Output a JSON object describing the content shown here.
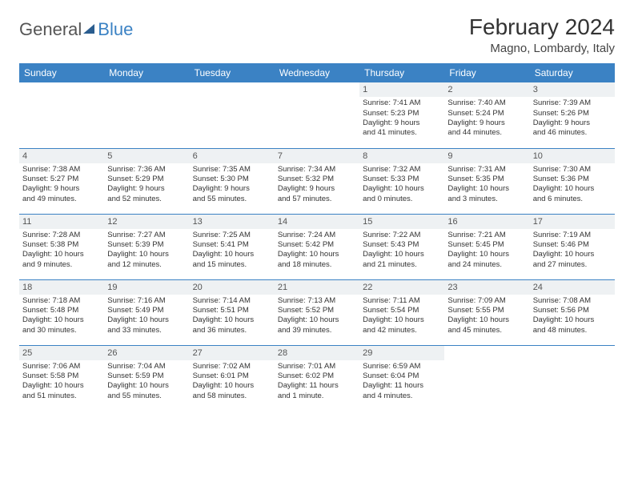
{
  "brand": {
    "name_part1": "General",
    "name_part2": "Blue"
  },
  "title": "February 2024",
  "location": "Magno, Lombardy, Italy",
  "colors": {
    "header_bg": "#3b82c4",
    "header_text": "#ffffff",
    "daynum_bg": "#eef1f3",
    "row_border": "#3b82c4",
    "body_text": "#333333"
  },
  "typography": {
    "title_fontsize": 28,
    "location_fontsize": 15,
    "dayheader_fontsize": 12,
    "cell_fontsize": 9.5
  },
  "day_headers": [
    "Sunday",
    "Monday",
    "Tuesday",
    "Wednesday",
    "Thursday",
    "Friday",
    "Saturday"
  ],
  "weeks": [
    [
      {
        "n": "",
        "sr": "",
        "ss": "",
        "d1": "",
        "d2": ""
      },
      {
        "n": "",
        "sr": "",
        "ss": "",
        "d1": "",
        "d2": ""
      },
      {
        "n": "",
        "sr": "",
        "ss": "",
        "d1": "",
        "d2": ""
      },
      {
        "n": "",
        "sr": "",
        "ss": "",
        "d1": "",
        "d2": ""
      },
      {
        "n": "1",
        "sr": "Sunrise: 7:41 AM",
        "ss": "Sunset: 5:23 PM",
        "d1": "Daylight: 9 hours",
        "d2": "and 41 minutes."
      },
      {
        "n": "2",
        "sr": "Sunrise: 7:40 AM",
        "ss": "Sunset: 5:24 PM",
        "d1": "Daylight: 9 hours",
        "d2": "and 44 minutes."
      },
      {
        "n": "3",
        "sr": "Sunrise: 7:39 AM",
        "ss": "Sunset: 5:26 PM",
        "d1": "Daylight: 9 hours",
        "d2": "and 46 minutes."
      }
    ],
    [
      {
        "n": "4",
        "sr": "Sunrise: 7:38 AM",
        "ss": "Sunset: 5:27 PM",
        "d1": "Daylight: 9 hours",
        "d2": "and 49 minutes."
      },
      {
        "n": "5",
        "sr": "Sunrise: 7:36 AM",
        "ss": "Sunset: 5:29 PM",
        "d1": "Daylight: 9 hours",
        "d2": "and 52 minutes."
      },
      {
        "n": "6",
        "sr": "Sunrise: 7:35 AM",
        "ss": "Sunset: 5:30 PM",
        "d1": "Daylight: 9 hours",
        "d2": "and 55 minutes."
      },
      {
        "n": "7",
        "sr": "Sunrise: 7:34 AM",
        "ss": "Sunset: 5:32 PM",
        "d1": "Daylight: 9 hours",
        "d2": "and 57 minutes."
      },
      {
        "n": "8",
        "sr": "Sunrise: 7:32 AM",
        "ss": "Sunset: 5:33 PM",
        "d1": "Daylight: 10 hours",
        "d2": "and 0 minutes."
      },
      {
        "n": "9",
        "sr": "Sunrise: 7:31 AM",
        "ss": "Sunset: 5:35 PM",
        "d1": "Daylight: 10 hours",
        "d2": "and 3 minutes."
      },
      {
        "n": "10",
        "sr": "Sunrise: 7:30 AM",
        "ss": "Sunset: 5:36 PM",
        "d1": "Daylight: 10 hours",
        "d2": "and 6 minutes."
      }
    ],
    [
      {
        "n": "11",
        "sr": "Sunrise: 7:28 AM",
        "ss": "Sunset: 5:38 PM",
        "d1": "Daylight: 10 hours",
        "d2": "and 9 minutes."
      },
      {
        "n": "12",
        "sr": "Sunrise: 7:27 AM",
        "ss": "Sunset: 5:39 PM",
        "d1": "Daylight: 10 hours",
        "d2": "and 12 minutes."
      },
      {
        "n": "13",
        "sr": "Sunrise: 7:25 AM",
        "ss": "Sunset: 5:41 PM",
        "d1": "Daylight: 10 hours",
        "d2": "and 15 minutes."
      },
      {
        "n": "14",
        "sr": "Sunrise: 7:24 AM",
        "ss": "Sunset: 5:42 PM",
        "d1": "Daylight: 10 hours",
        "d2": "and 18 minutes."
      },
      {
        "n": "15",
        "sr": "Sunrise: 7:22 AM",
        "ss": "Sunset: 5:43 PM",
        "d1": "Daylight: 10 hours",
        "d2": "and 21 minutes."
      },
      {
        "n": "16",
        "sr": "Sunrise: 7:21 AM",
        "ss": "Sunset: 5:45 PM",
        "d1": "Daylight: 10 hours",
        "d2": "and 24 minutes."
      },
      {
        "n": "17",
        "sr": "Sunrise: 7:19 AM",
        "ss": "Sunset: 5:46 PM",
        "d1": "Daylight: 10 hours",
        "d2": "and 27 minutes."
      }
    ],
    [
      {
        "n": "18",
        "sr": "Sunrise: 7:18 AM",
        "ss": "Sunset: 5:48 PM",
        "d1": "Daylight: 10 hours",
        "d2": "and 30 minutes."
      },
      {
        "n": "19",
        "sr": "Sunrise: 7:16 AM",
        "ss": "Sunset: 5:49 PM",
        "d1": "Daylight: 10 hours",
        "d2": "and 33 minutes."
      },
      {
        "n": "20",
        "sr": "Sunrise: 7:14 AM",
        "ss": "Sunset: 5:51 PM",
        "d1": "Daylight: 10 hours",
        "d2": "and 36 minutes."
      },
      {
        "n": "21",
        "sr": "Sunrise: 7:13 AM",
        "ss": "Sunset: 5:52 PM",
        "d1": "Daylight: 10 hours",
        "d2": "and 39 minutes."
      },
      {
        "n": "22",
        "sr": "Sunrise: 7:11 AM",
        "ss": "Sunset: 5:54 PM",
        "d1": "Daylight: 10 hours",
        "d2": "and 42 minutes."
      },
      {
        "n": "23",
        "sr": "Sunrise: 7:09 AM",
        "ss": "Sunset: 5:55 PM",
        "d1": "Daylight: 10 hours",
        "d2": "and 45 minutes."
      },
      {
        "n": "24",
        "sr": "Sunrise: 7:08 AM",
        "ss": "Sunset: 5:56 PM",
        "d1": "Daylight: 10 hours",
        "d2": "and 48 minutes."
      }
    ],
    [
      {
        "n": "25",
        "sr": "Sunrise: 7:06 AM",
        "ss": "Sunset: 5:58 PM",
        "d1": "Daylight: 10 hours",
        "d2": "and 51 minutes."
      },
      {
        "n": "26",
        "sr": "Sunrise: 7:04 AM",
        "ss": "Sunset: 5:59 PM",
        "d1": "Daylight: 10 hours",
        "d2": "and 55 minutes."
      },
      {
        "n": "27",
        "sr": "Sunrise: 7:02 AM",
        "ss": "Sunset: 6:01 PM",
        "d1": "Daylight: 10 hours",
        "d2": "and 58 minutes."
      },
      {
        "n": "28",
        "sr": "Sunrise: 7:01 AM",
        "ss": "Sunset: 6:02 PM",
        "d1": "Daylight: 11 hours",
        "d2": "and 1 minute."
      },
      {
        "n": "29",
        "sr": "Sunrise: 6:59 AM",
        "ss": "Sunset: 6:04 PM",
        "d1": "Daylight: 11 hours",
        "d2": "and 4 minutes."
      },
      {
        "n": "",
        "sr": "",
        "ss": "",
        "d1": "",
        "d2": ""
      },
      {
        "n": "",
        "sr": "",
        "ss": "",
        "d1": "",
        "d2": ""
      }
    ]
  ]
}
